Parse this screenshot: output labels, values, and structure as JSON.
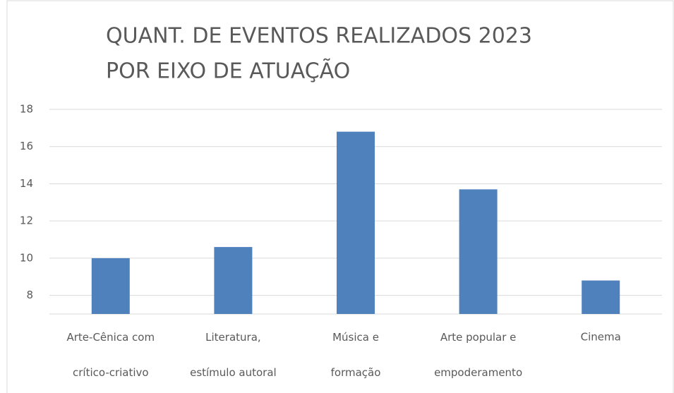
{
  "chart_data": {
    "type": "bar",
    "title": [
      "QUANT. DE EVENTOS REALIZADOS 2023",
      "POR EIXO DE ATUAÇÃO"
    ],
    "categories": [
      "Arte-Cênica com\ncrítico-criativo",
      "Literatura,\nestímulo autoral",
      "Música e\nformação",
      "Arte popular e\nempoderamento",
      "Cinema"
    ],
    "values": [
      10,
      10.6,
      16.8,
      13.7,
      8.8
    ],
    "color": "#4f81bd",
    "ylim": [
      7,
      18
    ],
    "yticks": [
      8,
      10,
      12,
      14,
      16,
      18
    ],
    "grid": true
  }
}
